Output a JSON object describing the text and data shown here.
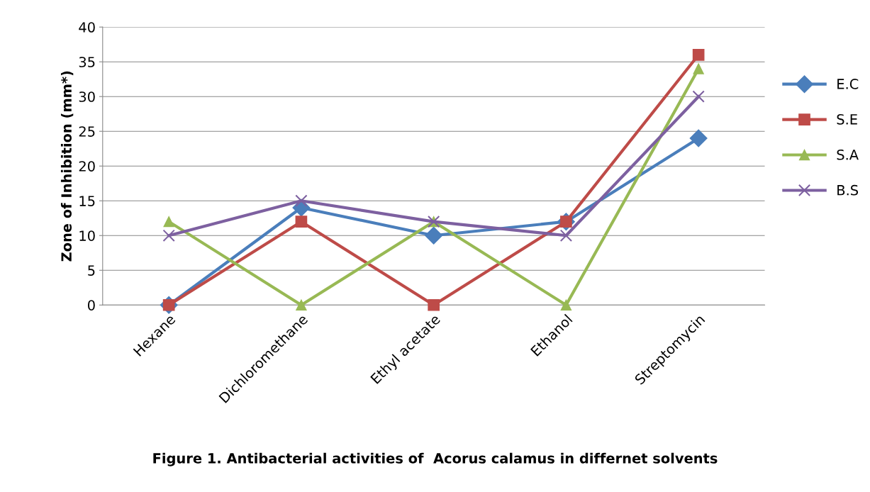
{
  "chart_data": {
    "type": "line",
    "title": "Figure 1. Antibacterial activities of  Acorus calamus in differnet solvents",
    "ylabel": "Zone of Inhibition (mm*)",
    "categories": [
      "Hexane",
      "Dichloromethane",
      "Ethyl acetate",
      "Ethanol",
      "Streptomycin"
    ],
    "series": [
      {
        "name": "E.C",
        "color": "#4a7ebb",
        "marker": "diamond",
        "values": [
          0,
          14,
          10,
          12,
          24
        ]
      },
      {
        "name": "S.E",
        "color": "#be4b48",
        "marker": "square",
        "values": [
          0,
          12,
          0,
          12,
          36
        ]
      },
      {
        "name": "S.A",
        "color": "#98b954",
        "marker": "triangle",
        "values": [
          12,
          0,
          12,
          0,
          34
        ]
      },
      {
        "name": "B.S",
        "color": "#7d60a0",
        "marker": "cross",
        "values": [
          10,
          15,
          12,
          10,
          30
        ]
      }
    ],
    "ylim": [
      0,
      40
    ],
    "yticks": [
      0,
      5,
      10,
      15,
      20,
      25,
      30,
      35,
      40
    ],
    "grid": "y",
    "legend": "right",
    "line_style": "solid"
  }
}
